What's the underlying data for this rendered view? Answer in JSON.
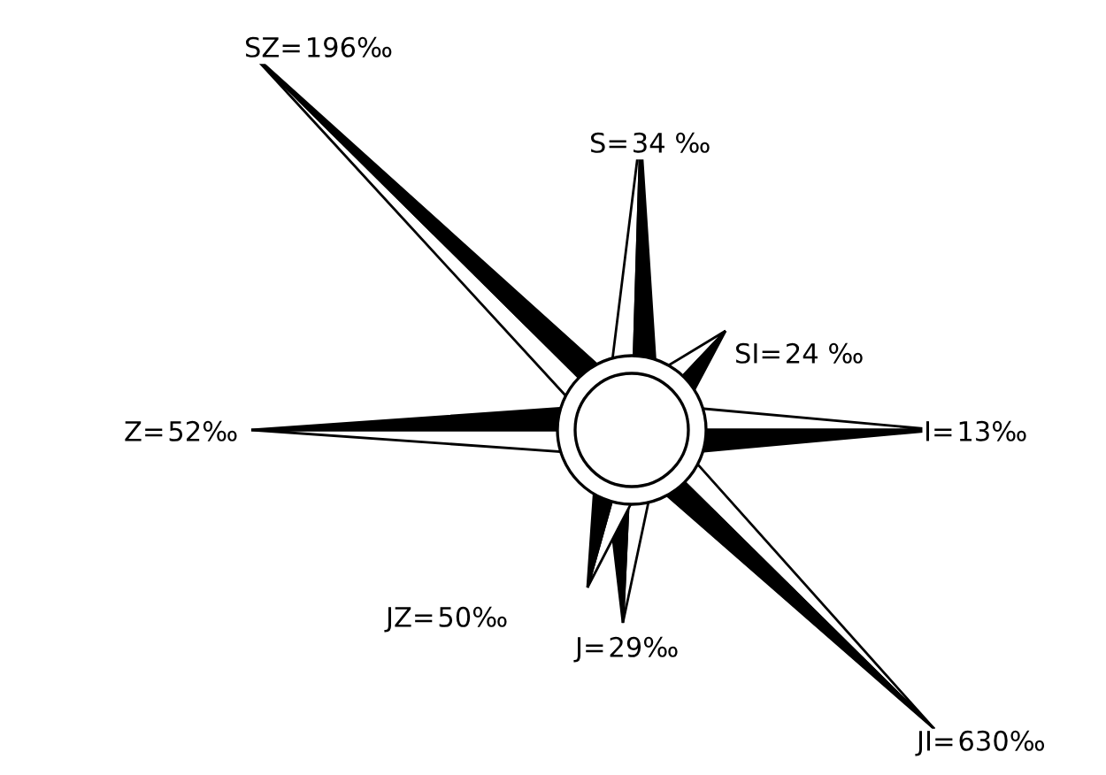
{
  "chart_data": {
    "type": "other",
    "categories": [
      "S=",
      "SI=",
      "I=",
      "JI=",
      "J=",
      "JZ=",
      "Z=",
      "SZ="
    ],
    "values": [
      34,
      24,
      13,
      630,
      29,
      50,
      52,
      196
    ],
    "value_labels": [
      "34 ‰",
      "24 ‰",
      "13‰",
      "630‰",
      "29‰",
      "50‰",
      "52‰",
      "196‰"
    ]
  }
}
